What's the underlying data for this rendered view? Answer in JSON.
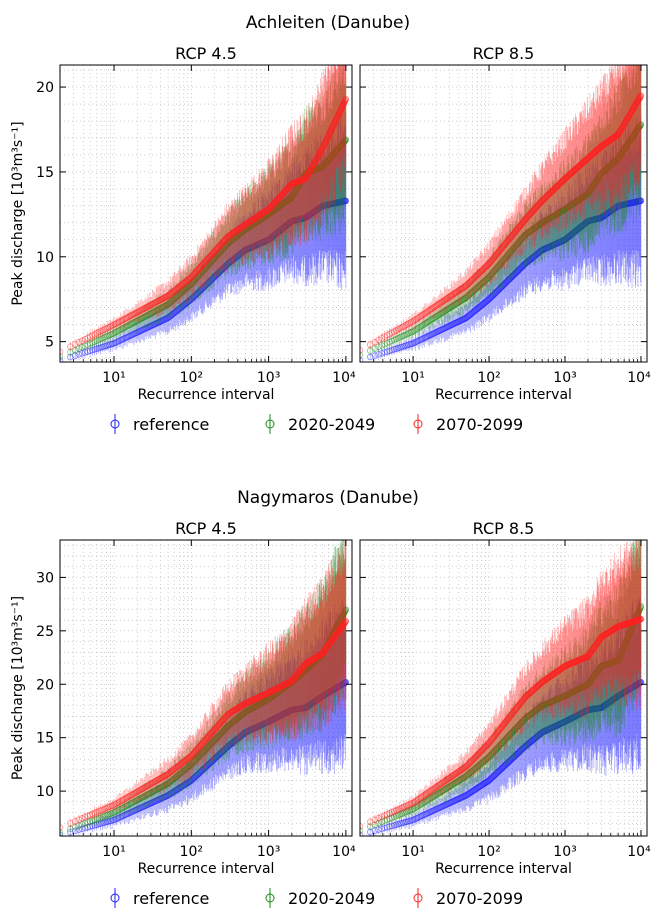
{
  "colors": {
    "reference": "#1f1fff",
    "2020-2049": "#1a8a1a",
    "2070-2099": "#ff2222"
  },
  "legend_labels": [
    "reference",
    "2020-2049",
    "2070-2099"
  ],
  "chart_data": [
    {
      "type": "scatter",
      "group_title": "Achleiten (Danube)",
      "title": "RCP 4.5",
      "xlabel": "Recurrence interval",
      "ylabel": "Peak discharge [10³m³s⁻¹]",
      "xscale": "log",
      "xlim": [
        2,
        12000
      ],
      "ylim": [
        3.8,
        21.3
      ],
      "xticks": [
        10,
        100,
        1000,
        10000
      ],
      "xtick_labels": [
        "10¹",
        "10²",
        "10³",
        "10⁴"
      ],
      "yticks": [
        5,
        10,
        15,
        20
      ],
      "grid": true,
      "legend": "below",
      "series": [
        {
          "name": "reference",
          "anchors": [
            [
              2,
              3.9
            ],
            [
              10,
              4.9
            ],
            [
              50,
              6.4
            ],
            [
              100,
              7.5
            ],
            [
              300,
              9.6
            ],
            [
              500,
              10.4
            ],
            [
              1000,
              11.0
            ],
            [
              2000,
              12.1
            ],
            [
              3000,
              12.3
            ],
            [
              5000,
              13.0
            ],
            [
              10000,
              13.3
            ]
          ]
        },
        {
          "name": "2020-2049",
          "anchors": [
            [
              2,
              4.1
            ],
            [
              10,
              5.5
            ],
            [
              50,
              7.2
            ],
            [
              100,
              8.4
            ],
            [
              300,
              10.8
            ],
            [
              500,
              11.6
            ],
            [
              1000,
              12.5
            ],
            [
              2000,
              13.5
            ],
            [
              3000,
              14.9
            ],
            [
              5000,
              15.3
            ],
            [
              10000,
              16.9
            ]
          ]
        },
        {
          "name": "2070-2099",
          "anchors": [
            [
              2,
              4.4
            ],
            [
              10,
              6.0
            ],
            [
              50,
              7.7
            ],
            [
              100,
              8.8
            ],
            [
              300,
              11.2
            ],
            [
              500,
              11.9
            ],
            [
              1000,
              12.8
            ],
            [
              2000,
              14.3
            ],
            [
              3000,
              14.6
            ],
            [
              5000,
              16.4
            ],
            [
              10000,
              19.3
            ]
          ]
        }
      ]
    },
    {
      "type": "scatter",
      "title": "RCP 8.5",
      "xlabel": "Recurrence interval",
      "ylabel": "",
      "xscale": "log",
      "xlim": [
        2,
        12000
      ],
      "ylim": [
        3.8,
        21.3
      ],
      "xticks": [
        10,
        100,
        1000,
        10000
      ],
      "xtick_labels": [
        "10¹",
        "10²",
        "10³",
        "10⁴"
      ],
      "yticks": [
        5,
        10,
        15,
        20
      ],
      "grid": true,
      "series": [
        {
          "name": "reference",
          "anchors": [
            [
              2,
              3.9
            ],
            [
              10,
              4.9
            ],
            [
              50,
              6.4
            ],
            [
              100,
              7.5
            ],
            [
              300,
              9.6
            ],
            [
              500,
              10.4
            ],
            [
              1000,
              11.0
            ],
            [
              2000,
              12.1
            ],
            [
              3000,
              12.3
            ],
            [
              5000,
              13.0
            ],
            [
              10000,
              13.3
            ]
          ]
        },
        {
          "name": "2020-2049",
          "anchors": [
            [
              2,
              4.2
            ],
            [
              10,
              5.6
            ],
            [
              50,
              7.6
            ],
            [
              100,
              8.8
            ],
            [
              300,
              11.3
            ],
            [
              500,
              12.0
            ],
            [
              1000,
              12.8
            ],
            [
              2000,
              13.7
            ],
            [
              3000,
              14.9
            ],
            [
              5000,
              15.8
            ],
            [
              10000,
              17.8
            ]
          ]
        },
        {
          "name": "2070-2099",
          "anchors": [
            [
              2,
              4.5
            ],
            [
              10,
              6.2
            ],
            [
              50,
              8.3
            ],
            [
              100,
              9.6
            ],
            [
              300,
              12.2
            ],
            [
              500,
              13.3
            ],
            [
              1000,
              14.6
            ],
            [
              2000,
              15.8
            ],
            [
              3000,
              16.5
            ],
            [
              5000,
              17.2
            ],
            [
              10000,
              19.5
            ]
          ]
        }
      ]
    },
    {
      "type": "scatter",
      "group_title": "Nagymaros (Danube)",
      "title": "RCP 4.5",
      "xlabel": "Recurrence interval",
      "ylabel": "Peak discharge [10³m³s⁻¹]",
      "xscale": "log",
      "xlim": [
        2,
        12000
      ],
      "ylim": [
        5.8,
        33.5
      ],
      "xticks": [
        10,
        100,
        1000,
        10000
      ],
      "xtick_labels": [
        "10¹",
        "10²",
        "10³",
        "10⁴"
      ],
      "yticks": [
        10,
        15,
        20,
        25,
        30
      ],
      "grid": true,
      "legend": "below",
      "series": [
        {
          "name": "reference",
          "anchors": [
            [
              2,
              5.9
            ],
            [
              10,
              7.3
            ],
            [
              50,
              9.6
            ],
            [
              100,
              11.0
            ],
            [
              300,
              14.2
            ],
            [
              500,
              15.5
            ],
            [
              1000,
              16.5
            ],
            [
              2000,
              17.6
            ],
            [
              3000,
              17.8
            ],
            [
              5000,
              18.9
            ],
            [
              10000,
              20.2
            ]
          ]
        },
        {
          "name": "2020-2049",
          "anchors": [
            [
              2,
              6.1
            ],
            [
              10,
              8.0
            ],
            [
              50,
              10.7
            ],
            [
              100,
              12.5
            ],
            [
              300,
              16.1
            ],
            [
              500,
              17.4
            ],
            [
              1000,
              18.6
            ],
            [
              2000,
              20.2
            ],
            [
              3000,
              21.3
            ],
            [
              5000,
              22.8
            ],
            [
              10000,
              27.0
            ]
          ]
        },
        {
          "name": "2070-2099",
          "anchors": [
            [
              2,
              6.6
            ],
            [
              10,
              8.7
            ],
            [
              50,
              11.6
            ],
            [
              100,
              13.3
            ],
            [
              300,
              17.2
            ],
            [
              500,
              18.2
            ],
            [
              1000,
              19.2
            ],
            [
              2000,
              20.3
            ],
            [
              3000,
              21.9
            ],
            [
              5000,
              22.9
            ],
            [
              10000,
              25.9
            ]
          ]
        }
      ]
    },
    {
      "type": "scatter",
      "title": "RCP 8.5",
      "xlabel": "Recurrence interval",
      "ylabel": "",
      "xscale": "log",
      "xlim": [
        2,
        12000
      ],
      "ylim": [
        5.8,
        33.5
      ],
      "xticks": [
        10,
        100,
        1000,
        10000
      ],
      "xtick_labels": [
        "10¹",
        "10²",
        "10³",
        "10⁴"
      ],
      "yticks": [
        10,
        15,
        20,
        25,
        30
      ],
      "grid": true,
      "series": [
        {
          "name": "reference",
          "anchors": [
            [
              2,
              5.9
            ],
            [
              10,
              7.3
            ],
            [
              50,
              9.6
            ],
            [
              100,
              11.0
            ],
            [
              300,
              14.2
            ],
            [
              500,
              15.5
            ],
            [
              1000,
              16.5
            ],
            [
              2000,
              17.6
            ],
            [
              3000,
              17.8
            ],
            [
              5000,
              18.9
            ],
            [
              10000,
              20.2
            ]
          ]
        },
        {
          "name": "2020-2049",
          "anchors": [
            [
              2,
              6.3
            ],
            [
              10,
              8.3
            ],
            [
              50,
              11.4
            ],
            [
              100,
              13.2
            ],
            [
              300,
              16.8
            ],
            [
              500,
              18.0
            ],
            [
              1000,
              18.9
            ],
            [
              2000,
              20.0
            ],
            [
              3000,
              21.7
            ],
            [
              5000,
              22.2
            ],
            [
              10000,
              27.3
            ]
          ]
        },
        {
          "name": "2070-2099",
          "anchors": [
            [
              2,
              6.7
            ],
            [
              10,
              8.9
            ],
            [
              50,
              12.3
            ],
            [
              100,
              14.5
            ],
            [
              300,
              18.8
            ],
            [
              500,
              20.2
            ],
            [
              1000,
              21.7
            ],
            [
              2000,
              22.6
            ],
            [
              3000,
              24.4
            ],
            [
              5000,
              25.4
            ],
            [
              10000,
              26.1
            ]
          ]
        }
      ]
    }
  ]
}
